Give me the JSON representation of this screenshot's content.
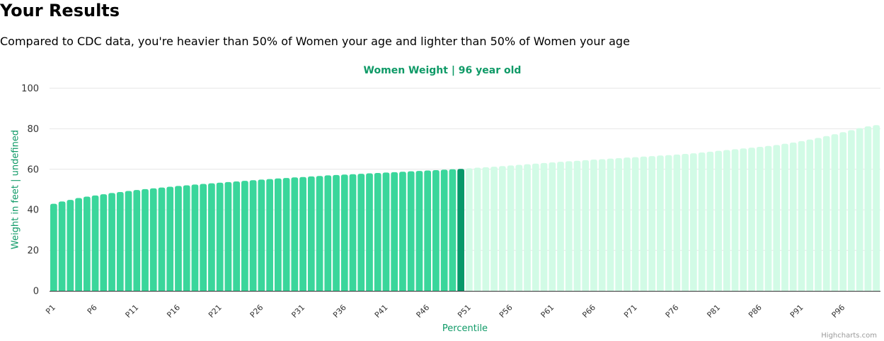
{
  "page": {
    "title": "Your Results",
    "summary": "Compared to CDC data, you're heavier than 50% of Women your age and lighter than 50% of Women your age"
  },
  "colors": {
    "below": "#3ad69b",
    "current": "#06986a",
    "above": "#d2fbe6",
    "accent": "#0f9a67",
    "grid": "#e6e6e6",
    "axis": "#333333"
  },
  "chart_data": {
    "type": "bar",
    "title": "Women Weight | 96 year old",
    "xlabel": "Percentile",
    "ylabel": "Weight in feet | undefined",
    "ylim": [
      0,
      100
    ],
    "ytick_labels": [
      "0",
      "20",
      "40",
      "60",
      "80",
      "100"
    ],
    "grid": true,
    "highlight_index": 49,
    "categories": [
      "P1",
      "P2",
      "P3",
      "P4",
      "P5",
      "P6",
      "P7",
      "P8",
      "P9",
      "P10",
      "P11",
      "P12",
      "P13",
      "P14",
      "P15",
      "P16",
      "P17",
      "P18",
      "P19",
      "P20",
      "P21",
      "P22",
      "P23",
      "P24",
      "P25",
      "P26",
      "P27",
      "P28",
      "P29",
      "P30",
      "P31",
      "P32",
      "P33",
      "P34",
      "P35",
      "P36",
      "P37",
      "P38",
      "P39",
      "P40",
      "P41",
      "P42",
      "P43",
      "P44",
      "P45",
      "P46",
      "P47",
      "P48",
      "P49",
      "P50",
      "P51",
      "P52",
      "P53",
      "P54",
      "P55",
      "P56",
      "P57",
      "P58",
      "P59",
      "P60",
      "P61",
      "P62",
      "P63",
      "P64",
      "P65",
      "P66",
      "P67",
      "P68",
      "P69",
      "P70",
      "P71",
      "P72",
      "P73",
      "P74",
      "P75",
      "P76",
      "P77",
      "P78",
      "P79",
      "P80",
      "P81",
      "P82",
      "P83",
      "P84",
      "P85",
      "P86",
      "P87",
      "P88",
      "P89",
      "P90",
      "P91",
      "P92",
      "P93",
      "P94",
      "P95",
      "P96",
      "P97",
      "P98",
      "P99",
      "P100"
    ],
    "visible_xtick_labels": [
      "P1",
      "P6",
      "P11",
      "P16",
      "P21",
      "P26",
      "P31",
      "P36",
      "P41",
      "P46",
      "P51",
      "P56",
      "P61",
      "P66",
      "P71",
      "P76",
      "P81",
      "P86",
      "P91",
      "P96"
    ],
    "values": [
      43.0,
      44.1,
      44.9,
      45.8,
      46.5,
      47.1,
      47.7,
      48.3,
      48.8,
      49.3,
      49.8,
      50.2,
      50.6,
      51.0,
      51.4,
      51.8,
      52.1,
      52.5,
      52.8,
      53.1,
      53.4,
      53.7,
      54.0,
      54.3,
      54.6,
      54.9,
      55.2,
      55.5,
      55.7,
      56.0,
      56.2,
      56.5,
      56.7,
      57.0,
      57.2,
      57.4,
      57.6,
      57.8,
      58.0,
      58.2,
      58.4,
      58.6,
      58.8,
      59.0,
      59.2,
      59.4,
      59.6,
      59.8,
      60.0,
      60.2,
      60.5,
      60.8,
      61.0,
      61.3,
      61.6,
      61.9,
      62.2,
      62.5,
      62.8,
      63.1,
      63.4,
      63.7,
      64.0,
      64.2,
      64.5,
      64.8,
      65.0,
      65.3,
      65.5,
      65.8,
      66.0,
      66.3,
      66.5,
      66.8,
      67.0,
      67.3,
      67.6,
      67.9,
      68.3,
      68.7,
      69.1,
      69.5,
      69.9,
      70.3,
      70.7,
      71.1,
      71.5,
      72.0,
      72.6,
      73.2,
      73.9,
      74.7,
      75.5,
      76.4,
      77.3,
      78.3,
      79.3,
      80.3,
      81.2,
      81.8
    ]
  },
  "credits": "Highcharts.com"
}
